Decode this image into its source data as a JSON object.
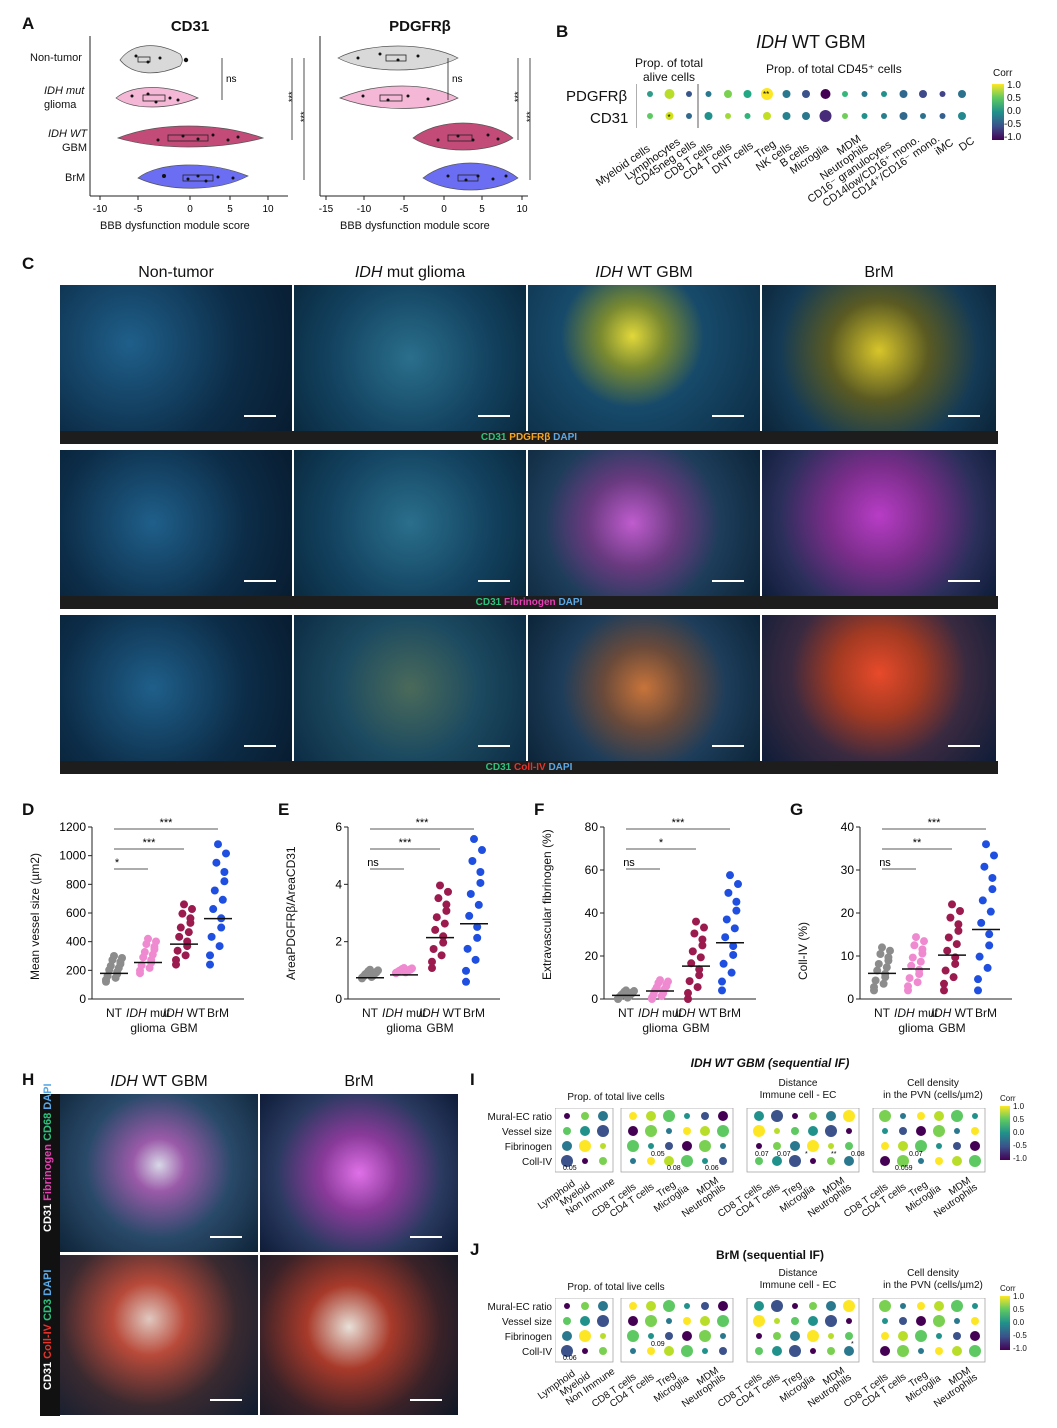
{
  "panelA": {
    "letter": "A",
    "charts": [
      {
        "title": "CD31",
        "xlabel": "BBB dysfunction module score",
        "ticks": [
          "-10",
          "-5",
          "0",
          "5",
          "10"
        ]
      },
      {
        "title": "PDGFRβ",
        "xlabel": "BBB dysfunction module score",
        "ticks": [
          "-15",
          "-10",
          "-5",
          "0",
          "5",
          "10"
        ]
      }
    ],
    "groups": [
      {
        "line1": "Non-tumor",
        "line2": ""
      },
      {
        "line1": "IDH mut",
        "line2": "glioma"
      },
      {
        "line1": "IDH WT",
        "line2": "GBM"
      },
      {
        "line1": "BrM",
        "line2": ""
      }
    ],
    "sig_ns": "ns",
    "sig_3": "***"
  },
  "panelB": {
    "letter": "B",
    "title_italic": "IDH",
    "title_rest": " WT GBM",
    "header_left_1": "Prop. of total",
    "header_left_2": "alive cells",
    "header_right": "Prop. of total CD45⁺ cells",
    "rows": [
      "PDGFRβ",
      "CD31"
    ],
    "columns": [
      "Myeloid cells",
      "Lymphocytes",
      "CD45neg cells",
      "CD8 T cells",
      "CD4 T cells",
      "DNT cells",
      "Treg",
      "NK cells",
      "B cells",
      "Microglia",
      "MDM",
      "Neutrophils",
      "CD16⁻ granulocytes",
      "CD14low/CD16⁺ mono.",
      "CD14⁺/CD16⁻ mono.",
      "iMC",
      "DC"
    ],
    "legend_title": "Corr",
    "legend_ticks": [
      "1.0",
      "0.5",
      "0.0",
      "-0.5",
      "-1.0"
    ],
    "star_labels": [
      "**",
      "*"
    ]
  },
  "panelC": {
    "letter": "C",
    "columns": [
      {
        "italic": "",
        "rest": "Non-tumor"
      },
      {
        "italic": "IDH",
        "rest": " mut glioma"
      },
      {
        "italic": "IDH",
        "rest": " WT GBM"
      },
      {
        "italic": "",
        "rest": "BrM"
      }
    ],
    "rows": [
      {
        "ch1": "CD31",
        "ch2": "PDGFRβ",
        "ch3": "DAPI",
        "ch2_color": "#f5a623"
      },
      {
        "ch1": "CD31",
        "ch2": "Fibrinogen",
        "ch3": "DAPI",
        "ch2_color": "#e63fb4"
      },
      {
        "ch1": "CD31",
        "ch2": "Coll-IV",
        "ch3": "DAPI",
        "ch2_color": "#e8332a"
      }
    ]
  },
  "quant_panels": [
    {
      "letter": "D",
      "ylabel": "Mean vessel size (µm2)",
      "yticks": [
        "0",
        "200",
        "400",
        "600",
        "800",
        "1000",
        "1200"
      ],
      "sigs": [
        "*",
        "***",
        "***"
      ]
    },
    {
      "letter": "E",
      "ylabel": "AreaPDGFRβ/AreaCD31",
      "yticks": [
        "0",
        "2",
        "4",
        "6"
      ],
      "sigs": [
        "ns",
        "***",
        "***"
      ]
    },
    {
      "letter": "F",
      "ylabel": "Extravascular fibrinogen (%)",
      "yticks": [
        "0",
        "20",
        "40",
        "60",
        "80"
      ],
      "sigs": [
        "ns",
        "*",
        "***"
      ]
    },
    {
      "letter": "G",
      "ylabel": "Coll-IV (%)",
      "yticks": [
        "0",
        "10",
        "20",
        "30",
        "40"
      ],
      "sigs": [
        "ns",
        "**",
        "***"
      ]
    }
  ],
  "quant_x": [
    {
      "line1": "NT",
      "line2": ""
    },
    {
      "line1": "IDH mut",
      "line2": "glioma"
    },
    {
      "line1": "IDH WT",
      "line2": "GBM"
    },
    {
      "line1": "BrM",
      "line2": ""
    }
  ],
  "panelH": {
    "letter": "H",
    "columns": [
      {
        "italic": "IDH",
        "rest": " WT GBM"
      },
      {
        "italic": "",
        "rest": "BrM"
      }
    ],
    "row_labels": [
      {
        "a": "CD31",
        "b": "Fibrinogen",
        "c": "CD68",
        "d": "DAPI"
      },
      {
        "a": "CD31",
        "b": "Coll-IV",
        "c": "CD3",
        "d": "DAPI"
      }
    ]
  },
  "panelI": {
    "letter": "I",
    "title": "IDH WT GBM (sequential IF)",
    "sub1": "Prop. of total live cells",
    "sub2_1": "Distance",
    "sub2_2": "Immune cell - EC",
    "sub3_1": "Cell density",
    "sub3_2": "in the PVN (cells/µm2)",
    "rows": [
      "Mural-EC ratio",
      "Vessel size",
      "Fibrinogen",
      "Coll-IV"
    ],
    "cols_a": [
      "Lymphoid",
      "Myeloid",
      "Non Immune"
    ],
    "cols_b": [
      "CD8 T cells",
      "CD4 T cells",
      "Treg",
      "Microglia",
      "MDM",
      "Neutrophils"
    ],
    "annot": [
      "0.05",
      "0.05",
      "0.08",
      "0.07",
      "0.08",
      "0.06",
      "0.07",
      "0.059",
      "0.07",
      "*",
      "**"
    ]
  },
  "panelJ": {
    "letter": "J",
    "title": "BrM (sequential IF)",
    "annot": [
      "0.09",
      "0.06",
      "*"
    ]
  },
  "colors": {
    "viridis_high": "#fde725",
    "viridis_mid": "#21918c",
    "viridis_low": "#440154",
    "gray": "#8c8c8c",
    "pink": "#f08ad0",
    "maroon": "#9b1b4e",
    "blue": "#1f4fe0"
  }
}
